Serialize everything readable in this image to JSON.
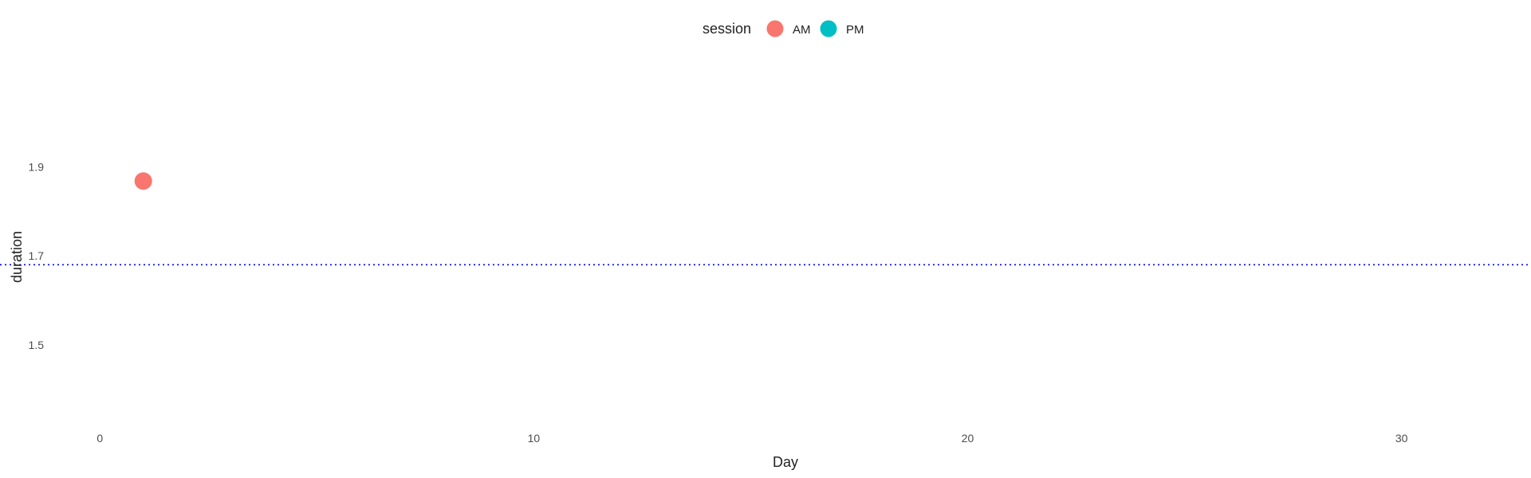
{
  "chart_data": {
    "type": "scatter",
    "xlabel": "Day",
    "ylabel": "duration",
    "xlim": [
      -1.2,
      32.8
    ],
    "ylim": [
      1.335,
      2.06
    ],
    "x_ticks": [
      0,
      10,
      20,
      30
    ],
    "y_ticks": [
      1.5,
      1.7,
      1.9
    ],
    "grid": false,
    "legend": {
      "title": "session",
      "position": "top",
      "entries": [
        {
          "label": "AM",
          "color": "#F8766D"
        },
        {
          "label": "PM",
          "color": "#00BFC4"
        }
      ]
    },
    "series": [
      {
        "name": "AM",
        "color": "#F8766D",
        "points": [
          {
            "x": 1,
            "y": 1.868
          }
        ]
      },
      {
        "name": "PM",
        "color": "#00BFC4",
        "points": []
      }
    ],
    "reference_line": {
      "y": 1.68,
      "style": "dotted",
      "color": "#0000ff"
    }
  }
}
